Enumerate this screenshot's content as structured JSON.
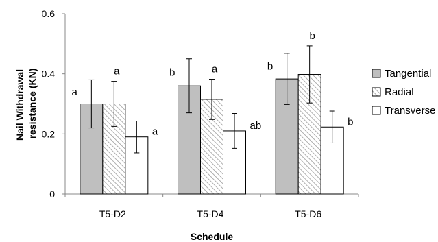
{
  "chart_data": {
    "type": "bar",
    "xlabel": "Schedule",
    "ylabel_lines": [
      "Nail Withdrawal",
      "resistance (KN)"
    ],
    "categories": [
      "T5-D2",
      "T5-D4",
      "T5-D6"
    ],
    "ylim": [
      0,
      0.6
    ],
    "yticks": [
      0,
      0.2,
      0.4,
      0.6
    ],
    "ytick_labels": [
      "0",
      "0.2",
      "0.4",
      "0.6"
    ],
    "grid": false,
    "legend_position": "right",
    "series": [
      {
        "name": "Tangential",
        "values": [
          0.3,
          0.36,
          0.383
        ],
        "errors": [
          0.08,
          0.09,
          0.085
        ],
        "letters": [
          "a",
          "b",
          "b"
        ],
        "fill": "#bfbfbf",
        "pattern": "solid"
      },
      {
        "name": "Radial",
        "values": [
          0.3,
          0.315,
          0.398
        ],
        "errors": [
          0.075,
          0.067,
          0.095
        ],
        "letters": [
          "a",
          "a",
          "b"
        ],
        "fill": "#ffffff",
        "pattern": "hatch"
      },
      {
        "name": "Transverse",
        "values": [
          0.19,
          0.21,
          0.223
        ],
        "errors": [
          0.053,
          0.058,
          0.053
        ],
        "letters": [
          "a",
          "ab",
          "b"
        ],
        "fill": "#ffffff",
        "pattern": "solid"
      }
    ]
  }
}
